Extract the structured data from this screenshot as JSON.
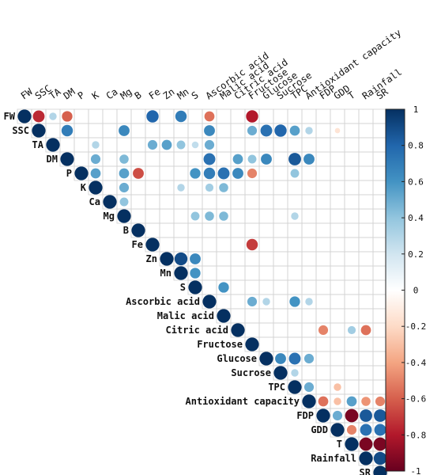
{
  "chart_data": {
    "type": "heatmap",
    "subtype": "upper-triangle correlogram (circles)",
    "variables": [
      "FW",
      "SSC",
      "TA",
      "DM",
      "P",
      "K",
      "Ca",
      "Mg",
      "B",
      "Fe",
      "Zn",
      "Mn",
      "S",
      "Ascorbic acid",
      "Malic acid",
      "Citric acid",
      "Fructose",
      "Glucose",
      "Sucrose",
      "TPC",
      "Antioxidant capacity",
      "FDP",
      "GDD",
      "T",
      "Rainfall",
      "SR"
    ],
    "correlations": [
      {
        "row": "FW",
        "col": "SSC",
        "value": -0.75
      },
      {
        "row": "FW",
        "col": "TA",
        "value": 0.3
      },
      {
        "row": "FW",
        "col": "DM",
        "value": -0.6
      },
      {
        "row": "FW",
        "col": "Fe",
        "value": 0.8
      },
      {
        "row": "FW",
        "col": "Mn",
        "value": 0.7
      },
      {
        "row": "FW",
        "col": "Ascorbic acid",
        "value": -0.55
      },
      {
        "row": "FW",
        "col": "Fructose",
        "value": -0.8
      },
      {
        "row": "SSC",
        "col": "DM",
        "value": 0.7
      },
      {
        "row": "SSC",
        "col": "Mg",
        "value": 0.65
      },
      {
        "row": "SSC",
        "col": "Ascorbic acid",
        "value": 0.65
      },
      {
        "row": "SSC",
        "col": "Fructose",
        "value": 0.5
      },
      {
        "row": "SSC",
        "col": "Glucose",
        "value": 0.75
      },
      {
        "row": "SSC",
        "col": "Sucrose",
        "value": 0.8
      },
      {
        "row": "SSC",
        "col": "TPC",
        "value": 0.55
      },
      {
        "row": "SSC",
        "col": "Antioxidant capacity",
        "value": 0.3
      },
      {
        "row": "SSC",
        "col": "GDD",
        "value": -0.15
      },
      {
        "row": "TA",
        "col": "K",
        "value": 0.3
      },
      {
        "row": "TA",
        "col": "Fe",
        "value": 0.5
      },
      {
        "row": "TA",
        "col": "Zn",
        "value": 0.55
      },
      {
        "row": "TA",
        "col": "Mn",
        "value": 0.4
      },
      {
        "row": "TA",
        "col": "S",
        "value": 0.25
      },
      {
        "row": "TA",
        "col": "Ascorbic acid",
        "value": 0.5
      },
      {
        "row": "DM",
        "col": "K",
        "value": 0.5
      },
      {
        "row": "DM",
        "col": "Mg",
        "value": 0.45
      },
      {
        "row": "DM",
        "col": "Ascorbic acid",
        "value": 0.75
      },
      {
        "row": "DM",
        "col": "Citric acid",
        "value": 0.55
      },
      {
        "row": "DM",
        "col": "Fructose",
        "value": 0.4
      },
      {
        "row": "DM",
        "col": "Glucose",
        "value": 0.65
      },
      {
        "row": "DM",
        "col": "TPC",
        "value": 0.85
      },
      {
        "row": "DM",
        "col": "Antioxidant capacity",
        "value": 0.65
      },
      {
        "row": "P",
        "col": "K",
        "value": 0.55
      },
      {
        "row": "P",
        "col": "Mg",
        "value": 0.55
      },
      {
        "row": "P",
        "col": "B",
        "value": -0.65
      },
      {
        "row": "P",
        "col": "S",
        "value": 0.6
      },
      {
        "row": "P",
        "col": "Ascorbic acid",
        "value": 0.7
      },
      {
        "row": "P",
        "col": "Malic acid",
        "value": 0.75
      },
      {
        "row": "P",
        "col": "Citric acid",
        "value": 0.65
      },
      {
        "row": "P",
        "col": "Fructose",
        "value": -0.5
      },
      {
        "row": "P",
        "col": "TPC",
        "value": 0.4
      },
      {
        "row": "K",
        "col": "Mg",
        "value": 0.5
      },
      {
        "row": "K",
        "col": "Mn",
        "value": 0.3
      },
      {
        "row": "K",
        "col": "Ascorbic acid",
        "value": 0.35
      },
      {
        "row": "K",
        "col": "Malic acid",
        "value": 0.45
      },
      {
        "row": "Ca",
        "col": "Mg",
        "value": 0.4
      },
      {
        "row": "Mg",
        "col": "S",
        "value": 0.4
      },
      {
        "row": "Mg",
        "col": "Ascorbic acid",
        "value": 0.45
      },
      {
        "row": "Mg",
        "col": "Malic acid",
        "value": 0.45
      },
      {
        "row": "Mg",
        "col": "TPC",
        "value": 0.3
      },
      {
        "row": "Fe",
        "col": "Fructose",
        "value": -0.7
      },
      {
        "row": "Zn",
        "col": "Mn",
        "value": 0.9
      },
      {
        "row": "Zn",
        "col": "S",
        "value": 0.65
      },
      {
        "row": "Mn",
        "col": "S",
        "value": 0.6
      },
      {
        "row": "S",
        "col": "Malic acid",
        "value": 0.6
      },
      {
        "row": "Ascorbic acid",
        "col": "Fructose",
        "value": 0.5
      },
      {
        "row": "Ascorbic acid",
        "col": "Glucose",
        "value": 0.3
      },
      {
        "row": "Ascorbic acid",
        "col": "TPC",
        "value": 0.6
      },
      {
        "row": "Ascorbic acid",
        "col": "Antioxidant capacity",
        "value": 0.3
      },
      {
        "row": "Citric acid",
        "col": "FDP",
        "value": -0.5
      },
      {
        "row": "Citric acid",
        "col": "T",
        "value": 0.35
      },
      {
        "row": "Citric acid",
        "col": "Rainfall",
        "value": -0.55
      },
      {
        "row": "Glucose",
        "col": "Sucrose",
        "value": 0.65
      },
      {
        "row": "Glucose",
        "col": "TPC",
        "value": 0.75
      },
      {
        "row": "Glucose",
        "col": "Antioxidant capacity",
        "value": 0.5
      },
      {
        "row": "Sucrose",
        "col": "TPC",
        "value": 0.3
      },
      {
        "row": "TPC",
        "col": "Antioxidant capacity",
        "value": 0.5
      },
      {
        "row": "TPC",
        "col": "GDD",
        "value": -0.3
      },
      {
        "row": "Antioxidant capacity",
        "col": "FDP",
        "value": -0.55
      },
      {
        "row": "Antioxidant capacity",
        "col": "GDD",
        "value": -0.3
      },
      {
        "row": "Antioxidant capacity",
        "col": "T",
        "value": 0.55
      },
      {
        "row": "Antioxidant capacity",
        "col": "Rainfall",
        "value": -0.45
      },
      {
        "row": "Antioxidant capacity",
        "col": "SR",
        "value": -0.5
      },
      {
        "row": "FDP",
        "col": "GDD",
        "value": 0.5
      },
      {
        "row": "FDP",
        "col": "T",
        "value": -0.95
      },
      {
        "row": "FDP",
        "col": "Rainfall",
        "value": 0.85
      },
      {
        "row": "FDP",
        "col": "SR",
        "value": 0.85
      },
      {
        "row": "GDD",
        "col": "T",
        "value": -0.5
      },
      {
        "row": "GDD",
        "col": "Rainfall",
        "value": 0.75
      },
      {
        "row": "GDD",
        "col": "SR",
        "value": 0.75
      },
      {
        "row": "T",
        "col": "Rainfall",
        "value": -0.95
      },
      {
        "row": "T",
        "col": "SR",
        "value": -0.95
      },
      {
        "row": "Rainfall",
        "col": "SR",
        "value": 0.9
      }
    ],
    "diagonal_value": 1,
    "color_scale": {
      "min": -1,
      "max": 1,
      "ticks": [
        "1",
        "0.8",
        "0.6",
        "0.4",
        "0.2",
        "0",
        "-0.2",
        "-0.4",
        "-0.6",
        "-0.8",
        "-1"
      ],
      "stops": [
        {
          "value": -1,
          "color": "#67001F"
        },
        {
          "value": -0.8,
          "color": "#B2182B"
        },
        {
          "value": -0.6,
          "color": "#D6604D"
        },
        {
          "value": -0.4,
          "color": "#F4A582"
        },
        {
          "value": -0.2,
          "color": "#FDDBC7"
        },
        {
          "value": 0,
          "color": "#FFFFFF"
        },
        {
          "value": 0.2,
          "color": "#D1E5F0"
        },
        {
          "value": 0.4,
          "color": "#92C5DE"
        },
        {
          "value": 0.6,
          "color": "#4393C3"
        },
        {
          "value": 0.8,
          "color": "#2166AC"
        },
        {
          "value": 1,
          "color": "#053061"
        }
      ]
    },
    "grid": true,
    "legend": "right"
  }
}
